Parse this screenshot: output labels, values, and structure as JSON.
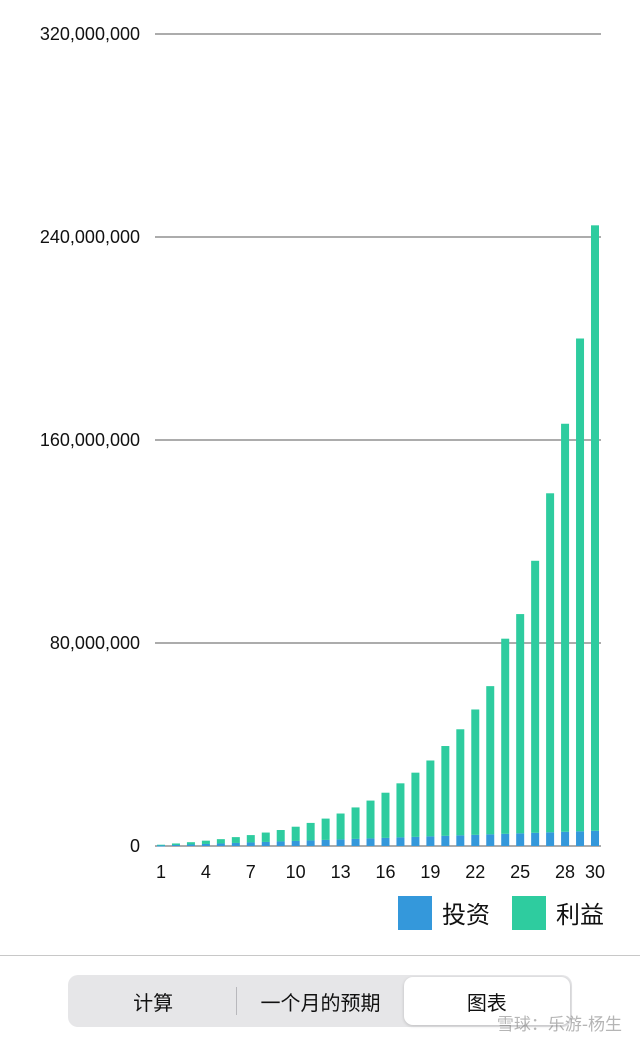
{
  "chart_data": {
    "type": "bar",
    "stacked": true,
    "x": [
      1,
      2,
      3,
      4,
      5,
      6,
      7,
      8,
      9,
      10,
      11,
      12,
      13,
      14,
      15,
      16,
      17,
      18,
      19,
      20,
      21,
      22,
      23,
      24,
      25,
      26,
      27,
      28,
      29,
      30
    ],
    "x_tick_labels": [
      "1",
      "4",
      "7",
      "10",
      "13",
      "16",
      "19",
      "22",
      "25",
      "28",
      "30"
    ],
    "x_tick_values": [
      1,
      4,
      7,
      10,
      13,
      16,
      19,
      22,
      25,
      28,
      30
    ],
    "y_tick_labels": [
      "0",
      "80,000,000",
      "160,000,000",
      "240,000,000",
      "320,000,000"
    ],
    "y_tick_values": [
      0,
      80000000,
      160000000,
      240000000,
      320000000
    ],
    "ylim": [
      0,
      320000000
    ],
    "grid": true,
    "legend_position": "bottom-right",
    "series": [
      {
        "name": "投资",
        "color": "#3498db",
        "values": [
          200000,
          400000,
          600000,
          800000,
          1000000,
          1200000,
          1400000,
          1600000,
          1800000,
          2000000,
          2200000,
          2400000,
          2600000,
          2800000,
          3000000,
          3200000,
          3400000,
          3600000,
          3800000,
          4000000,
          4200000,
          4400000,
          4600000,
          4800000,
          5000000,
          5200000,
          5400000,
          5600000,
          5800000,
          6000000
        ]
      },
      {
        "name": "利益",
        "color": "#2ecc9f",
        "values": [
          300000,
          600000,
          900000,
          1300000,
          1700000,
          2300000,
          2900000,
          3700000,
          4500000,
          5600000,
          6900000,
          8400000,
          10200000,
          12400000,
          14900000,
          17800000,
          21300000,
          25300000,
          29900000,
          35400000,
          41800000,
          49400000,
          58400000,
          76900000,
          86400000,
          107200000,
          133600000,
          160800000,
          194200000,
          238600000
        ]
      }
    ],
    "title": "",
    "xlabel": "",
    "ylabel": ""
  },
  "segmented_control": {
    "items": [
      "计算",
      "一个月的预期",
      "图表"
    ],
    "selected_index": 2
  },
  "watermark": "雪球：乐游-杨生"
}
